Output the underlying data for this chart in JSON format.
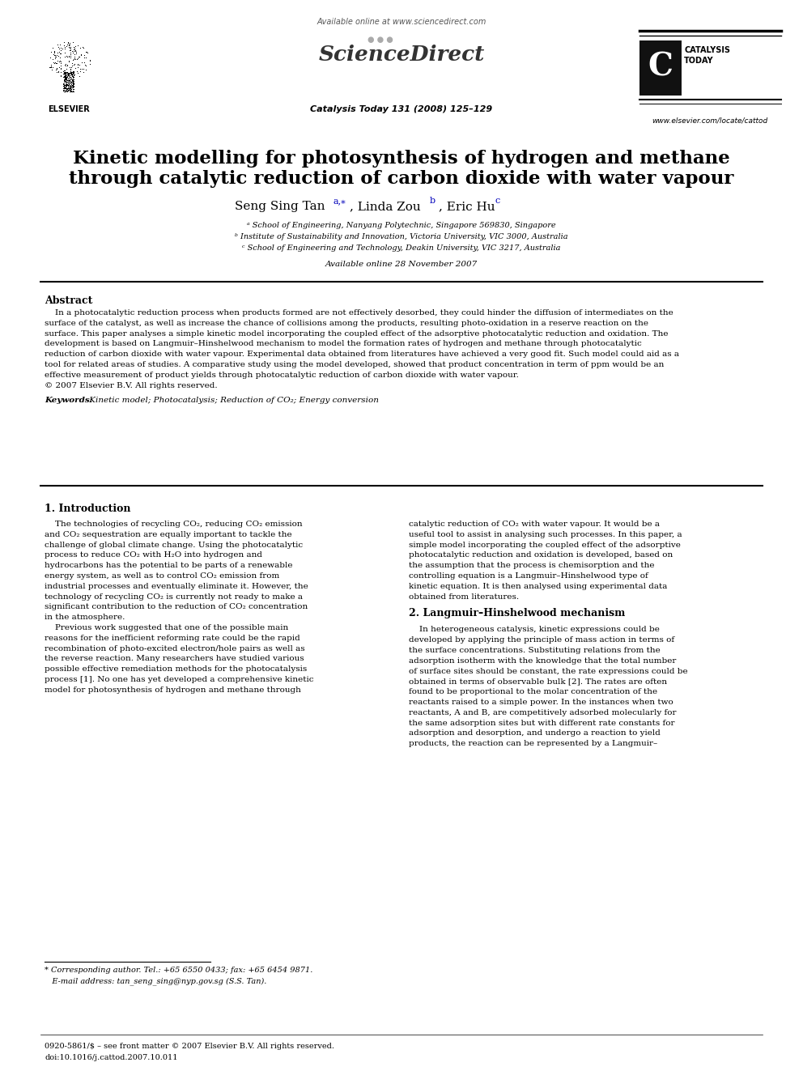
{
  "bg_color": "#ffffff",
  "available_online_header": "Available online at www.sciencedirect.com",
  "sciencedirect_text": "ScienceDirect",
  "journal_info": "Catalysis Today 131 (2008) 125–129",
  "website": "www.elsevier.com/locate/cattod",
  "elsevier_label": "ELSEVIER",
  "catalysis_line1": "CATALYSIS",
  "catalysis_line2": "TODAY",
  "title_line1": "Kinetic modelling for photosynthesis of hydrogen and methane",
  "title_line2": "through catalytic reduction of carbon dioxide with water vapour",
  "author_main": "Seng Sing Tan",
  "author_sup1": "a,⁎",
  "author2": ", Linda Zou",
  "author_sup2": "b",
  "author3": ", Eric Hu",
  "author_sup3": "c",
  "aff1": "ᵃ School of Engineering, Nanyang Polytechnic, Singapore 569830, Singapore",
  "aff2": "ᵇ Institute of Sustainability and Innovation, Victoria University, VIC 3000, Australia",
  "aff3": "ᶜ School of Engineering and Technology, Deakin University, VIC 3217, Australia",
  "avail_date": "Available online 28 November 2007",
  "abstract_head": "Abstract",
  "abstract_lines": [
    "    In a photocatalytic reduction process when products formed are not effectively desorbed, they could hinder the diffusion of intermediates on the",
    "surface of the catalyst, as well as increase the chance of collisions among the products, resulting photo-oxidation in a reserve reaction on the",
    "surface. This paper analyses a simple kinetic model incorporating the coupled effect of the adsorptive photocatalytic reduction and oxidation. The",
    "development is based on Langmuir–Hinshelwood mechanism to model the formation rates of hydrogen and methane through photocatalytic",
    "reduction of carbon dioxide with water vapour. Experimental data obtained from literatures have achieved a very good fit. Such model could aid as a",
    "tool for related areas of studies. A comparative study using the model developed, showed that product concentration in term of ppm would be an",
    "effective measurement of product yields through photocatalytic reduction of carbon dioxide with water vapour.",
    "© 2007 Elsevier B.V. All rights reserved."
  ],
  "keywords_label": "Keywords: ",
  "keywords_text": " Kinetic model; Photocatalysis; Reduction of CO₂; Energy conversion",
  "sec1_title": "1. Introduction",
  "sec1_col1_lines": [
    "    The technologies of recycling CO₂, reducing CO₂ emission",
    "and CO₂ sequestration are equally important to tackle the",
    "challenge of global climate change. Using the photocatalytic",
    "process to reduce CO₂ with H₂O into hydrogen and",
    "hydrocarbons has the potential to be parts of a renewable",
    "energy system, as well as to control CO₂ emission from",
    "industrial processes and eventually eliminate it. However, the",
    "technology of recycling CO₂ is currently not ready to make a",
    "significant contribution to the reduction of CO₂ concentration",
    "in the atmosphere.",
    "    Previous work suggested that one of the possible main",
    "reasons for the inefficient reforming rate could be the rapid",
    "recombination of photo-excited electron/hole pairs as well as",
    "the reverse reaction. Many researchers have studied various",
    "possible effective remediation methods for the photocatalysis",
    "process [1]. No one has yet developed a comprehensive kinetic",
    "model for photosynthesis of hydrogen and methane through"
  ],
  "sec1_col2_lines": [
    "catalytic reduction of CO₂ with water vapour. It would be a",
    "useful tool to assist in analysing such processes. In this paper, a",
    "simple model incorporating the coupled effect of the adsorptive",
    "photocatalytic reduction and oxidation is developed, based on",
    "the assumption that the process is chemisorption and the",
    "controlling equation is a Langmuir–Hinshelwood type of",
    "kinetic equation. It is then analysed using experimental data",
    "obtained from literatures."
  ],
  "sec2_title": "2. Langmuir–Hinshelwood mechanism",
  "sec2_col2_lines": [
    "    In heterogeneous catalysis, kinetic expressions could be",
    "developed by applying the principle of mass action in terms of",
    "the surface concentrations. Substituting relations from the",
    "adsorption isotherm with the knowledge that the total number",
    "of surface sites should be constant, the rate expressions could be",
    "obtained in terms of observable bulk [2]. The rates are often",
    "found to be proportional to the molar concentration of the",
    "reactants raised to a simple power. In the instances when two",
    "reactants, A and B, are competitively adsorbed molecularly for",
    "the same adsorption sites but with different rate constants for",
    "adsorption and desorption, and undergo a reaction to yield",
    "products, the reaction can be represented by a Langmuir–"
  ],
  "footnote_star_line1": "* Corresponding author. Tel.: +65 6550 0433; fax: +65 6454 9871.",
  "footnote_star_line2": "   E-mail address: tan_seng_sing@nyp.gov.sg (S.S. Tan).",
  "footnote_bottom_line1": "0920-5861/$ – see front matter © 2007 Elsevier B.V. All rights reserved.",
  "footnote_bottom_line2": "doi:10.1016/j.cattod.2007.10.011"
}
